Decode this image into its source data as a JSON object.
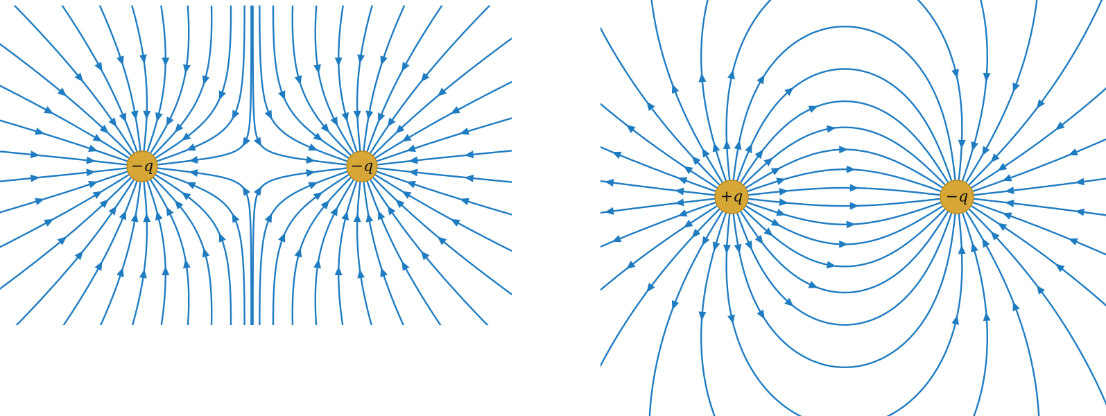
{
  "panels": [
    {
      "id": "like-charges",
      "charges": [
        {
          "label": "−q",
          "sign": -1
        },
        {
          "label": "−q",
          "sign": -1
        }
      ]
    },
    {
      "id": "dipole",
      "charges": [
        {
          "label": "+q",
          "sign": 1
        },
        {
          "label": "−q",
          "sign": -1
        }
      ]
    }
  ],
  "colors": {
    "field_line": "#1f7cc1",
    "charge_fill": "#d6a636",
    "charge_stroke": "#b88a23"
  },
  "icons": {
    "arrowhead": "triangle-arrow-icon"
  }
}
